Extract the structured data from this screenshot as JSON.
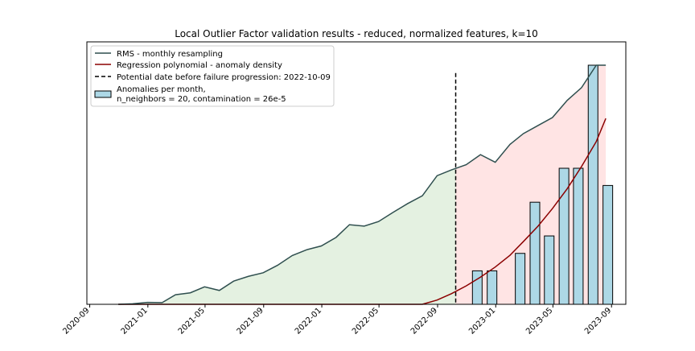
{
  "chart_data": {
    "type": "line",
    "title": "Local Outlier Factor validation results - reduced, normalized features, k=10",
    "xlabel": "",
    "ylabel": "",
    "x_tick_labels": [
      "2020-09",
      "2021-01",
      "2021-05",
      "2021-09",
      "2022-01",
      "2022-05",
      "2022-09",
      "2023-01",
      "2023-05",
      "2023-09"
    ],
    "x_ticks": [
      "2020-09-01",
      "2021-01-01",
      "2021-05-01",
      "2021-09-01",
      "2022-01-01",
      "2022-05-01",
      "2022-09-01",
      "2023-01-01",
      "2023-05-01",
      "2023-09-01"
    ],
    "xlim": [
      "2020-08-26",
      "2023-10-01"
    ],
    "grid": false,
    "legend_position": "top-left",
    "colors": {
      "rms": "#2f4f4f",
      "regression": "#8b0000",
      "bars_fill": "#add8e6",
      "bars_edge": "#000000",
      "area_before": "#e4f1e1",
      "area_after": "#ffe4e4",
      "vline": "#000000"
    },
    "legend": [
      {
        "label": "RMS - monthly resampling",
        "kind": "line",
        "color": "#2f4f4f"
      },
      {
        "label": "Regression polynomial - anomaly density",
        "kind": "line",
        "color": "#8b0000"
      },
      {
        "label": "Potential date before failure progression: 2022-10-09",
        "kind": "dashed",
        "color": "#000000"
      },
      {
        "label": "Anomalies per month,",
        "label2": "n_neighbors = 20, contamination = 26e-5",
        "kind": "bar",
        "color": "#add8e6"
      }
    ],
    "vline_date": "2022-10-09",
    "vline_value": 0.9,
    "ylim": [
      0,
      1.1
    ],
    "series": [
      {
        "name": "RMS - monthly resampling",
        "kind": "line",
        "x": [
          "2020-10-31",
          "2020-11-30",
          "2020-12-31",
          "2021-01-31",
          "2021-02-28",
          "2021-03-31",
          "2021-04-30",
          "2021-05-31",
          "2021-06-30",
          "2021-07-31",
          "2021-08-31",
          "2021-09-30",
          "2021-10-31",
          "2021-11-30",
          "2021-12-31",
          "2022-01-31",
          "2022-02-28",
          "2022-03-31",
          "2022-04-30",
          "2022-05-31",
          "2022-06-30",
          "2022-07-31",
          "2022-08-31",
          "2022-09-30",
          "2022-10-31",
          "2022-11-30",
          "2022-12-31",
          "2023-01-31",
          "2023-02-28",
          "2023-03-31",
          "2023-04-30",
          "2023-05-31",
          "2023-06-30",
          "2023-07-31",
          "2023-08-31"
        ],
        "values": [
          0.0,
          0.002,
          0.008,
          0.007,
          0.04,
          0.048,
          0.073,
          0.058,
          0.097,
          0.117,
          0.132,
          0.163,
          0.204,
          0.228,
          0.244,
          0.28,
          0.333,
          0.327,
          0.346,
          0.385,
          0.421,
          0.454,
          0.538,
          0.562,
          0.584,
          0.626,
          0.594,
          0.669,
          0.714,
          0.748,
          0.781,
          0.853,
          0.906,
          1.0,
          1.0
        ],
        "note_last_point_partial": true
      },
      {
        "name": "Regression polynomial - anomaly density",
        "kind": "line",
        "x": [
          "2020-10-31",
          "2022-06-30",
          "2022-07-31",
          "2022-08-31",
          "2022-09-30",
          "2022-10-31",
          "2022-11-30",
          "2022-12-31",
          "2023-01-31",
          "2023-02-28",
          "2023-03-31",
          "2023-04-30",
          "2023-05-31",
          "2023-06-30",
          "2023-07-31",
          "2023-08-31"
        ],
        "values": [
          0.0,
          0.0,
          0.0,
          0.018,
          0.045,
          0.078,
          0.115,
          0.158,
          0.208,
          0.266,
          0.332,
          0.406,
          0.49,
          0.584,
          0.69,
          0.788
        ]
      },
      {
        "name": "Anomalies per month",
        "kind": "bar",
        "x": [
          "2022-11-30",
          "2022-12-31",
          "2023-02-28",
          "2023-03-31",
          "2023-04-30",
          "2023-05-31",
          "2023-06-30",
          "2023-07-31",
          "2023-08-31"
        ],
        "values": [
          0.14,
          0.14,
          0.213,
          0.427,
          0.286,
          0.569,
          0.569,
          1.0,
          0.497
        ]
      }
    ]
  }
}
